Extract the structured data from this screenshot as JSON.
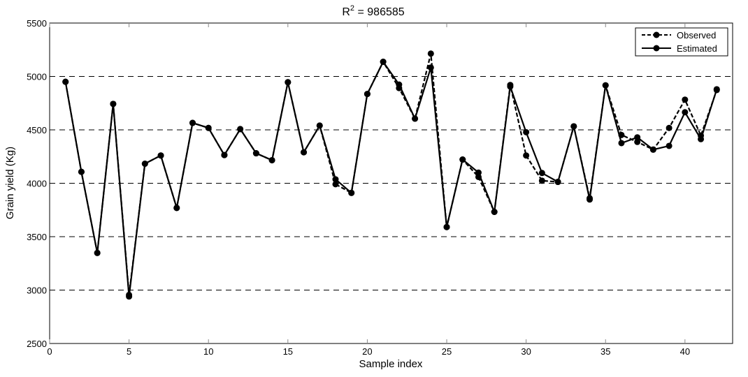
{
  "chart_data": {
    "type": "line",
    "title_base": "R",
    "title_sup": "2",
    "title_rest": " = 986585",
    "title": "R^2 = 986585",
    "xlabel": "Sample index",
    "ylabel": "Grain yield (Kg)",
    "xlim": [
      0,
      43
    ],
    "ylim": [
      2500,
      5500
    ],
    "xticks": [
      0,
      5,
      10,
      15,
      20,
      25,
      30,
      35,
      40
    ],
    "yticks": [
      2500,
      3000,
      3500,
      4000,
      4500,
      5000,
      5500
    ],
    "grid": "horizontal dashed",
    "legend_position": "top-right",
    "x": [
      1,
      2,
      3,
      4,
      5,
      6,
      7,
      8,
      9,
      10,
      11,
      12,
      13,
      14,
      15,
      16,
      17,
      18,
      19,
      20,
      21,
      22,
      23,
      24,
      25,
      26,
      27,
      28,
      29,
      30,
      31,
      32,
      33,
      34,
      35,
      36,
      37,
      38,
      39,
      40,
      41,
      42
    ],
    "series": [
      {
        "name": "Observed",
        "style": "dashed",
        "marker": "circle",
        "values": [
          4950,
          4107,
          3348,
          4743,
          2955,
          4183,
          4260,
          3769,
          4565,
          4518,
          4264,
          4507,
          4281,
          4216,
          4946,
          4290,
          4540,
          3991,
          3910,
          4836,
          5137,
          4891,
          4605,
          5214,
          3590,
          4222,
          4059,
          3732,
          4920,
          4260,
          4024,
          4013,
          4533,
          3860,
          4917,
          4452,
          4387,
          4315,
          4518,
          4783,
          4446,
          4873
        ]
      },
      {
        "name": "Estimated",
        "style": "solid",
        "marker": "circle",
        "values": [
          4950,
          4107,
          3348,
          4743,
          2940,
          4183,
          4260,
          3769,
          4565,
          4518,
          4264,
          4507,
          4281,
          4216,
          4946,
          4290,
          4540,
          4037,
          3910,
          4836,
          5137,
          4924,
          4605,
          5083,
          3590,
          4222,
          4100,
          3732,
          4905,
          4478,
          4096,
          4013,
          4533,
          3848,
          4917,
          4376,
          4430,
          4315,
          4350,
          4665,
          4413,
          4880
        ]
      }
    ]
  },
  "colors": {
    "line": "#000000",
    "grid": "#000000",
    "axis": "#000000",
    "background": "#ffffff"
  }
}
